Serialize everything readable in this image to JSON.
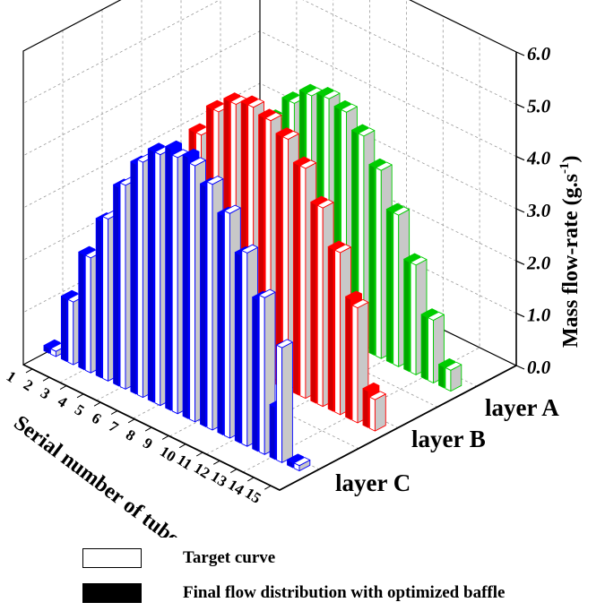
{
  "chart_data": {
    "type": "bar",
    "categories": [
      "1",
      "2",
      "3",
      "4",
      "5",
      "6",
      "7",
      "8",
      "9",
      "10",
      "11",
      "12",
      "13",
      "14",
      "15"
    ],
    "xlabel": "Serial number of tubes",
    "zlabel": "Mass flow-rate (g.s",
    "zlabel_sup": "-1",
    "zlabel_close": ")",
    "zlim": [
      0,
      6
    ],
    "z_ticks": [
      "0.0",
      "1.0",
      "2.0",
      "3.0",
      "4.0",
      "5.0",
      "6.0"
    ],
    "grid": true,
    "layers": [
      {
        "name": "layer C",
        "color": "#0000ff",
        "target": [
          0.1,
          1.2,
          2.2,
          3.1,
          3.9,
          4.5,
          4.8,
          4.9,
          4.9,
          4.7,
          4.3,
          3.7,
          3.0,
          2.2,
          0.1
        ],
        "final": [
          0.1,
          1.2,
          2.2,
          3.0,
          3.8,
          4.4,
          4.8,
          5.0,
          5.0,
          4.6,
          4.2,
          3.6,
          2.9,
          1.0,
          0.1
        ]
      },
      {
        "name": "layer B",
        "color": "#ff0000",
        "target": [
          0.3,
          1.4,
          2.4,
          3.3,
          4.1,
          4.7,
          5.0,
          5.1,
          5.0,
          4.8,
          4.4,
          3.8,
          3.1,
          2.2,
          0.6
        ],
        "final": [
          0.3,
          1.4,
          2.4,
          3.3,
          4.1,
          4.7,
          5.0,
          5.1,
          5.0,
          4.8,
          4.4,
          3.8,
          3.1,
          2.3,
          0.7
        ]
      },
      {
        "name": "layer A",
        "color": "#00cc00",
        "target": [
          0.2,
          1.2,
          2.1,
          2.9,
          3.6,
          4.1,
          4.4,
          4.5,
          4.4,
          4.1,
          3.6,
          2.9,
          2.1,
          1.2,
          0.4
        ],
        "final": [
          0.2,
          1.2,
          2.1,
          2.9,
          3.6,
          4.1,
          4.4,
          4.5,
          4.4,
          4.1,
          3.6,
          2.9,
          2.1,
          1.2,
          0.4
        ]
      }
    ]
  },
  "legend": {
    "target": {
      "label": "Target curve",
      "color": "#ffffff"
    },
    "final": {
      "label": "Final flow distribution with optimized baffle",
      "color": "#000000"
    }
  }
}
